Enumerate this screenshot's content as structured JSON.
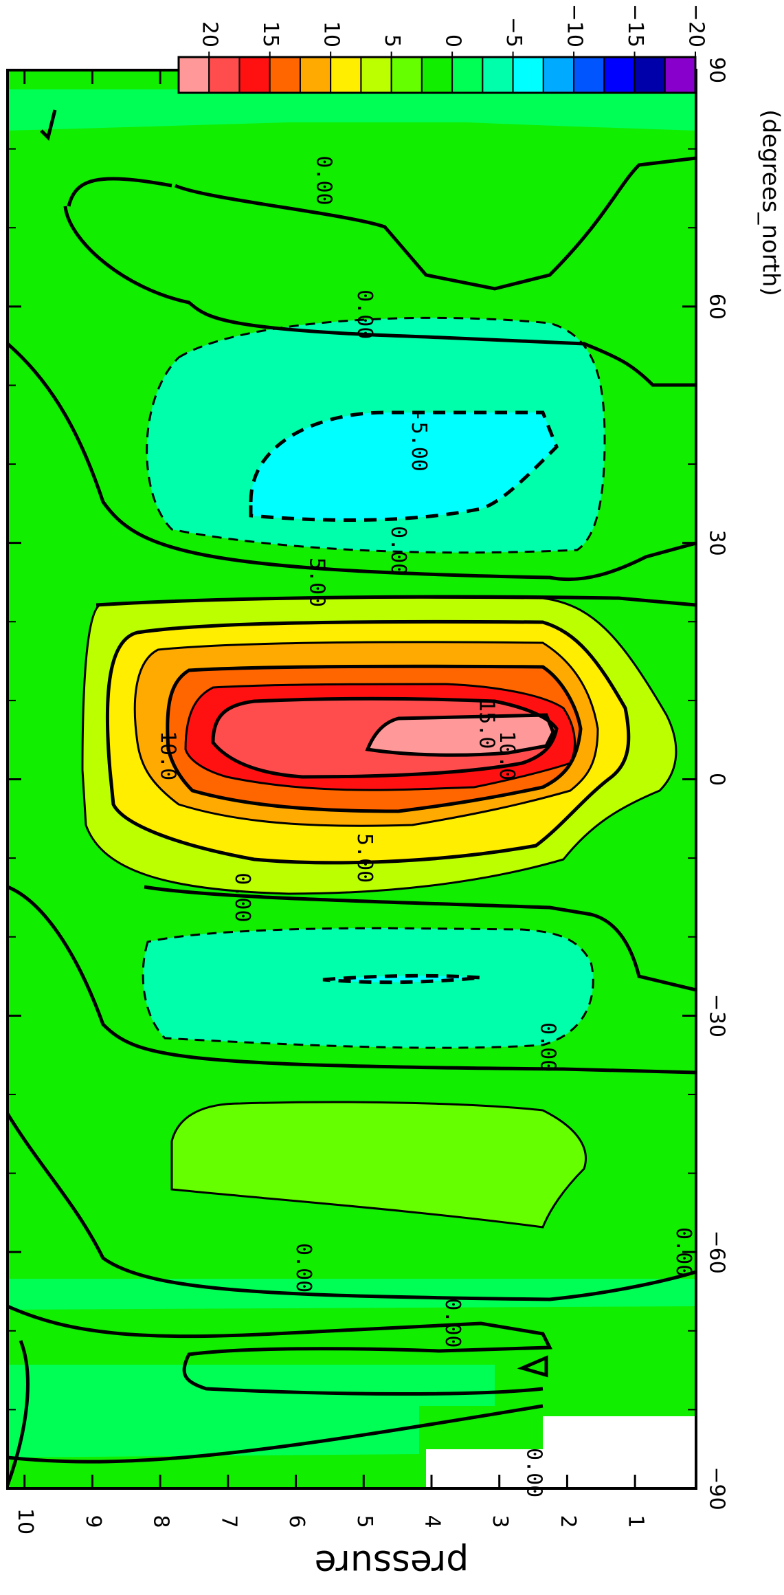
{
  "chart_data": {
    "type": "contour",
    "orientation": "rotated-90-clockwise",
    "xlabel": "(degrees_north)",
    "ylabel": "pressure",
    "x_ticks": [
      -90,
      -60,
      -30,
      0,
      30,
      60,
      90
    ],
    "y_ticks": [
      1,
      2,
      3,
      4,
      5,
      6,
      7,
      8,
      9,
      10
    ],
    "xlim": [
      -90,
      90
    ],
    "ylim": [
      10.25,
      0.1
    ],
    "colorbar": {
      "tick_labels": [
        "20",
        "15",
        "10",
        "5",
        "0",
        "-5",
        "-10",
        "-15",
        "-20"
      ],
      "levels": [
        20,
        17.5,
        15,
        12.5,
        10,
        7.5,
        5,
        2.5,
        0,
        -2.5,
        -5,
        -7.5,
        -10,
        -12.5,
        -15,
        -17.5,
        -20
      ],
      "colors": [
        "#ff9999",
        "#ff4d4d",
        "#ff1111",
        "#ff6600",
        "#ffaa00",
        "#ffee00",
        "#bbff00",
        "#66ff00",
        "#11ee00",
        "#00ff55",
        "#00ffaa",
        "#00ffff",
        "#00aaff",
        "#0055ff",
        "#0000ff",
        "#0000aa",
        "#8800cc"
      ]
    },
    "contour_labels": [
      {
        "text": "0.00",
        "x": 76,
        "y": 5.6
      },
      {
        "text": "0.00",
        "x": 59,
        "y": 5.0
      },
      {
        "text": "-5.00",
        "x": 43,
        "y": 4.2
      },
      {
        "text": "0.00",
        "x": 29,
        "y": 4.5
      },
      {
        "text": "5.00",
        "x": 25,
        "y": 5.7
      },
      {
        "text": "15.0",
        "x": 7,
        "y": 3.2
      },
      {
        "text": "10.0",
        "x": 3,
        "y": 2.9
      },
      {
        "text": "10.0",
        "x": 3,
        "y": 7.9
      },
      {
        "text": "5.00",
        "x": -10,
        "y": 5.0
      },
      {
        "text": "0.00",
        "x": -15,
        "y": 6.8
      },
      {
        "text": "0.00",
        "x": -34,
        "y": 2.3
      },
      {
        "text": "0.00",
        "x": -62,
        "y": 5.9
      },
      {
        "text": "0.00",
        "x": -69,
        "y": 3.7
      },
      {
        "text": "0.00",
        "x": -88,
        "y": 2.5
      },
      {
        "text": "0.00",
        "x": -60,
        "y": 0.3
      }
    ]
  }
}
